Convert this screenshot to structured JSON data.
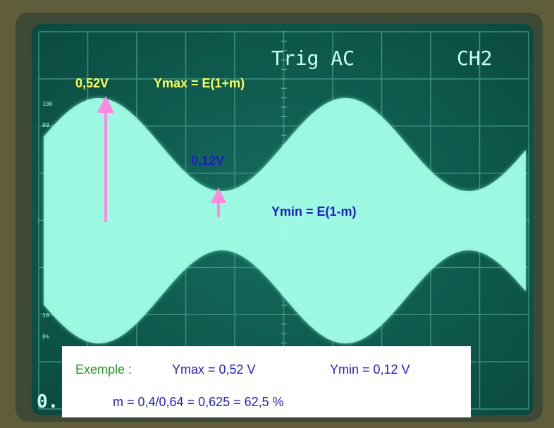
{
  "screen": {
    "trigger": "Trig AC",
    "channel": "CH2",
    "scale_labels": [
      "100",
      "90",
      "10",
      "0%"
    ],
    "corner": "0."
  },
  "annotations": {
    "ymax_value": "0,52V",
    "ymax_formula": "Ymax = E(1+m)",
    "ymin_value": "0,12V",
    "ymin_formula": "Ymin = E(1-m)"
  },
  "example": {
    "label": "Exemple :",
    "ymax": "Ymax = 0,52 V",
    "ymin": "Ymin = 0,12 V",
    "formula": "m = 0,4/0,64 = 0,625 = 62,5 %"
  }
}
